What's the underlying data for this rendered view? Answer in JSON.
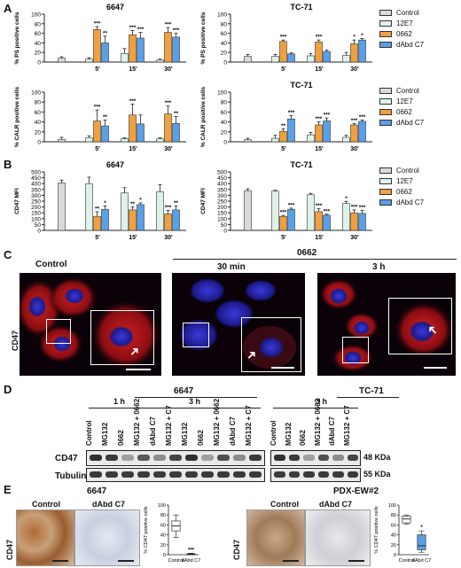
{
  "panels": {
    "A": "A",
    "B": "B",
    "C": "C",
    "D": "D",
    "E": "E"
  },
  "legend": {
    "items": [
      {
        "label": "Control",
        "color": "#d9d9d9"
      },
      {
        "label": "12E7",
        "color": "#dff2ea"
      },
      {
        "label": "0662",
        "color": "#f0a040"
      },
      {
        "label": "dAbd C7",
        "color": "#5aa0e6"
      }
    ]
  },
  "chart_data": [
    {
      "id": "ps-6647",
      "type": "bar",
      "title": "6647",
      "ylabel": "% PS positive cells",
      "ylim": [
        0,
        100
      ],
      "yticks": [
        0,
        20,
        40,
        60,
        80,
        100
      ],
      "groups": [
        "",
        "5'",
        "15'",
        "30'"
      ],
      "series": [
        {
          "name": "Control",
          "values": [
            8,
            null,
            null,
            null
          ],
          "errors": [
            3,
            null,
            null,
            null
          ],
          "stars": [
            "",
            "",
            "",
            ""
          ]
        },
        {
          "name": "12E7",
          "values": [
            null,
            6,
            18,
            4
          ],
          "errors": [
            null,
            3,
            10,
            2
          ],
          "stars": [
            "",
            "",
            "",
            ""
          ]
        },
        {
          "name": "0662",
          "values": [
            null,
            68,
            57,
            62
          ],
          "errors": [
            null,
            6,
            9,
            10
          ],
          "stars": [
            "",
            "***",
            "***",
            "***"
          ]
        },
        {
          "name": "dAbd C7",
          "values": [
            null,
            40,
            50,
            52
          ],
          "errors": [
            null,
            14,
            12,
            8
          ],
          "stars": [
            "",
            "**",
            "***",
            "***"
          ]
        }
      ]
    },
    {
      "id": "ps-tc71",
      "type": "bar",
      "title": "TC-71",
      "ylabel": "% PS positive cells",
      "ylim": [
        0,
        100
      ],
      "yticks": [
        0,
        20,
        40,
        60,
        80,
        100
      ],
      "groups": [
        "",
        "5'",
        "15'",
        "30'"
      ],
      "series": [
        {
          "name": "Control",
          "values": [
            12,
            null,
            null,
            null
          ],
          "errors": [
            4,
            null,
            null,
            null
          ],
          "stars": [
            "",
            "",
            "",
            ""
          ]
        },
        {
          "name": "12E7",
          "values": [
            null,
            12,
            13,
            14
          ],
          "errors": [
            null,
            4,
            5,
            6
          ],
          "stars": [
            "",
            "",
            "",
            ""
          ]
        },
        {
          "name": "0662",
          "values": [
            null,
            43,
            42,
            38
          ],
          "errors": [
            null,
            3,
            4,
            8
          ],
          "stars": [
            "",
            "***",
            "***",
            "*"
          ]
        },
        {
          "name": "dAbd C7",
          "values": [
            null,
            17,
            22,
            46
          ],
          "errors": [
            null,
            2,
            3,
            3
          ],
          "stars": [
            "",
            "",
            "",
            "*"
          ]
        }
      ]
    },
    {
      "id": "calr-6647",
      "type": "bar",
      "title": "",
      "ylabel": "% CALR positive cells",
      "ylim": [
        0,
        100
      ],
      "yticks": [
        0,
        20,
        40,
        60,
        80,
        100
      ],
      "groups": [
        "",
        "5'",
        "15'",
        "30'"
      ],
      "series": [
        {
          "name": "Control",
          "values": [
            5,
            null,
            null,
            null
          ],
          "errors": [
            4,
            null,
            null,
            null
          ],
          "stars": [
            "",
            "",
            "",
            ""
          ]
        },
        {
          "name": "12E7",
          "values": [
            null,
            8,
            6,
            6
          ],
          "errors": [
            null,
            4,
            2,
            2
          ],
          "stars": [
            "",
            "",
            "",
            ""
          ]
        },
        {
          "name": "0662",
          "values": [
            null,
            42,
            54,
            56
          ],
          "errors": [
            null,
            22,
            22,
            16
          ],
          "stars": [
            "",
            "***",
            "***",
            "***"
          ]
        },
        {
          "name": "dAbd C7",
          "values": [
            null,
            32,
            36,
            37
          ],
          "errors": [
            null,
            12,
            18,
            14
          ],
          "stars": [
            "",
            "**",
            "",
            "**"
          ]
        }
      ]
    },
    {
      "id": "calr-tc71",
      "type": "bar",
      "title": "TC-71",
      "ylabel": "% CALR positive cells",
      "ylim": [
        0,
        100
      ],
      "yticks": [
        0,
        20,
        40,
        60,
        80,
        100
      ],
      "groups": [
        "",
        "5'",
        "15'",
        "30'"
      ],
      "series": [
        {
          "name": "Control",
          "values": [
            4,
            null,
            null,
            null
          ],
          "errors": [
            3,
            null,
            null,
            null
          ],
          "stars": [
            "",
            "",
            "",
            ""
          ]
        },
        {
          "name": "12E7",
          "values": [
            null,
            7,
            14,
            9
          ],
          "errors": [
            null,
            6,
            5,
            4
          ],
          "stars": [
            "",
            "",
            "",
            ""
          ]
        },
        {
          "name": "0662",
          "values": [
            null,
            21,
            34,
            34
          ],
          "errors": [
            null,
            5,
            6,
            3
          ],
          "stars": [
            "",
            "**",
            "***",
            "***"
          ]
        },
        {
          "name": "dAbd C7",
          "values": [
            null,
            46,
            42,
            41
          ],
          "errors": [
            null,
            7,
            6,
            3
          ],
          "stars": [
            "",
            "***",
            "***",
            "***"
          ]
        }
      ]
    },
    {
      "id": "cd47-6647",
      "type": "bar",
      "title": "6647",
      "ylabel": "CD47 MFI",
      "ylim": [
        0,
        500
      ],
      "yticks": [
        0,
        50,
        100,
        150,
        200,
        250,
        300,
        350,
        400,
        450,
        500
      ],
      "groups": [
        "",
        "5'",
        "15'",
        "30'"
      ],
      "series": [
        {
          "name": "Control",
          "values": [
            405,
            null,
            null,
            null
          ],
          "errors": [
            25,
            null,
            null,
            null
          ],
          "stars": [
            "",
            "",
            "",
            ""
          ]
        },
        {
          "name": "12E7",
          "values": [
            null,
            400,
            320,
            330
          ],
          "errors": [
            null,
            55,
            45,
            60
          ],
          "stars": [
            "",
            "",
            "",
            ""
          ]
        },
        {
          "name": "0662",
          "values": [
            null,
            120,
            175,
            140
          ],
          "errors": [
            null,
            40,
            25,
            30
          ],
          "stars": [
            "",
            "**",
            "**",
            "***"
          ]
        },
        {
          "name": "dAbd C7",
          "values": [
            null,
            180,
            220,
            175
          ],
          "errors": [
            null,
            30,
            15,
            35
          ],
          "stars": [
            "",
            "*",
            "*",
            "**"
          ]
        }
      ]
    },
    {
      "id": "cd47-tc71",
      "type": "bar",
      "title": "TC-71",
      "ylabel": "CD47 MFI",
      "ylim": [
        0,
        500
      ],
      "yticks": [
        0,
        50,
        100,
        150,
        200,
        250,
        300,
        350,
        400,
        450,
        500
      ],
      "groups": [
        "",
        "5'",
        "15'",
        "30'"
      ],
      "series": [
        {
          "name": "Control",
          "values": [
            340,
            null,
            null,
            null
          ],
          "errors": [
            15,
            null,
            null,
            null
          ],
          "stars": [
            "",
            "",
            "",
            ""
          ]
        },
        {
          "name": "12E7",
          "values": [
            null,
            335,
            305,
            230
          ],
          "errors": [
            null,
            8,
            12,
            18
          ],
          "stars": [
            "",
            "",
            "",
            "*"
          ]
        },
        {
          "name": "0662",
          "values": [
            null,
            120,
            160,
            150
          ],
          "errors": [
            null,
            8,
            25,
            25
          ],
          "stars": [
            "",
            "***",
            "***",
            "***"
          ]
        },
        {
          "name": "dAbd C7",
          "values": [
            null,
            180,
            130,
            145
          ],
          "errors": [
            null,
            10,
            8,
            25
          ],
          "stars": [
            "",
            "***",
            "***",
            "***"
          ]
        }
      ]
    },
    {
      "id": "box-6647",
      "type": "box",
      "title": "6647",
      "ylabel": "% CD47 positive cells",
      "ylim": [
        0,
        100
      ],
      "yticks": [
        0,
        20,
        40,
        60,
        80,
        100
      ],
      "categories": [
        "Control",
        "dAbd C7"
      ],
      "boxes": [
        {
          "min": 35,
          "q1": 48,
          "median": 58,
          "q3": 68,
          "max": 80,
          "color": "#ffffff"
        },
        {
          "min": 0,
          "q1": 0.5,
          "median": 1,
          "q3": 2,
          "max": 3,
          "color": "#5aa0e6"
        }
      ],
      "stars": [
        "",
        "***"
      ]
    },
    {
      "id": "box-pdx",
      "type": "box",
      "title": "PDX-EW#2",
      "ylabel": "% CD47 positive cells",
      "ylim": [
        0,
        100
      ],
      "yticks": [
        0,
        20,
        40,
        60,
        80,
        100
      ],
      "categories": [
        "Control",
        "dAbd C7"
      ],
      "boxes": [
        {
          "min": 62,
          "q1": 64,
          "median": 72,
          "q3": 78,
          "max": 80,
          "color": "#ffffff"
        },
        {
          "min": 5,
          "q1": 10,
          "median": 18,
          "q3": 40,
          "max": 48,
          "color": "#5aa0e6"
        }
      ],
      "stars": [
        "",
        "*"
      ]
    }
  ],
  "panelC": {
    "control": "Control",
    "treatment": "0662",
    "t30": "30 min",
    "t3h": "3 h",
    "ylabel": "CD47"
  },
  "panelD": {
    "left_title": "6647",
    "right_title": "TC-71",
    "time_1h": "1 h",
    "time_3h": "3 h",
    "time_3h_right": "3 h",
    "lanes_left": [
      "Control",
      "MG132",
      "0662",
      "MG132 + 0662",
      "dAbd C7",
      "MG132 + C7",
      "MG132",
      "0662",
      "MG132 + 0662",
      "dAbd C7",
      "MG132 + C7"
    ],
    "lanes_right": [
      "Control",
      "MG132",
      "0662",
      "MG132 + 0662",
      "dAbd C7",
      "MG132 + C7"
    ],
    "row_cd47": "CD47",
    "row_tubulin": "Tubulin",
    "kda_48": "48 KDa",
    "kda_55": "55 KDa"
  },
  "panelE": {
    "left_title": "6647",
    "right_title": "PDX-EW#2",
    "control": "Control",
    "dabd": "dAbd C7",
    "control2": "Control",
    "dabd2": "dAbd C7",
    "ylabel": "CD47",
    "ylabel2": "CD47"
  }
}
